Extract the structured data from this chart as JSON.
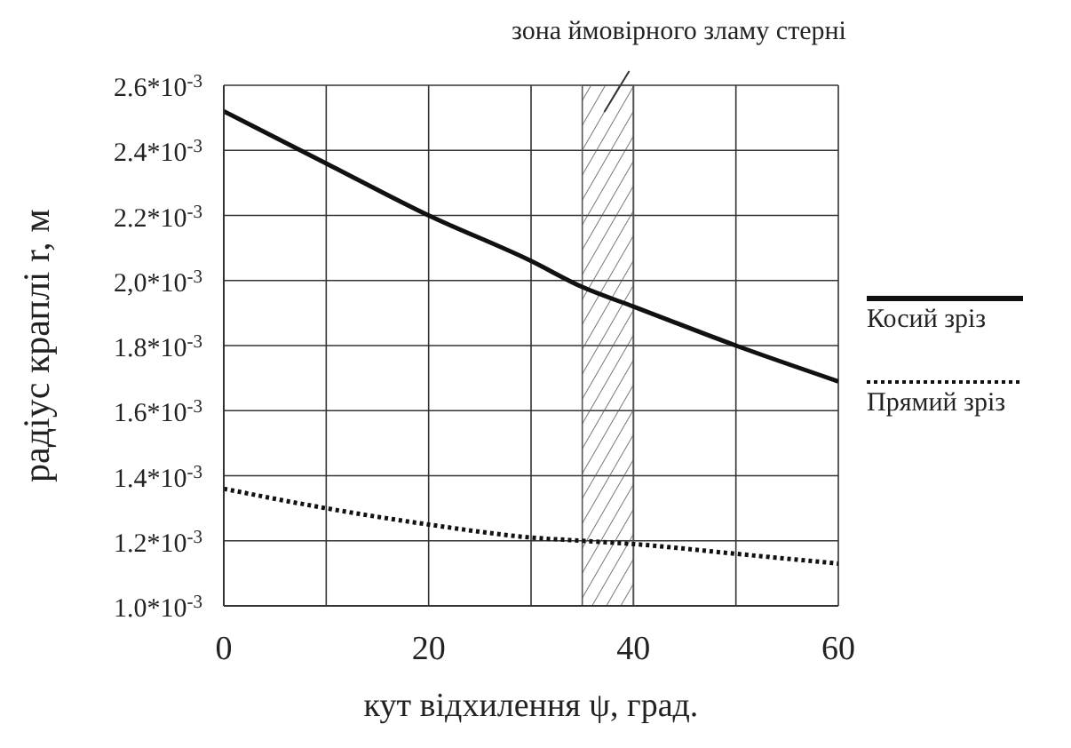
{
  "chart_data": {
    "type": "line",
    "xlabel": "кут відхилення ψ, град.",
    "ylabel": "радіус краплі  r, м",
    "x": [
      0,
      10,
      20,
      30,
      35,
      40,
      50,
      60
    ],
    "series": [
      {
        "name": "Косий зріз",
        "color": "#111111",
        "line_style": "solid",
        "values": [
          0.00252,
          0.00236,
          0.0022,
          0.00206,
          0.00198,
          0.00192,
          0.0018,
          0.00169
        ]
      },
      {
        "name": "Прямий зріз",
        "color": "#111111",
        "line_style": "dotted",
        "values": [
          0.00136,
          0.0013,
          0.00125,
          0.00121,
          0.0012,
          0.00119,
          0.00116,
          0.00113
        ]
      }
    ],
    "xlim": [
      0,
      60
    ],
    "xticks": [
      0,
      {
        "value": 10,
        "label": null
      },
      20,
      {
        "value": 30,
        "label": null
      },
      40,
      {
        "value": 50,
        "label": null
      },
      60
    ],
    "ylim": [
      0.001,
      0.0026
    ],
    "yticks": [
      {
        "value": 0.001,
        "label": "1.0*10$^{-3}$"
      },
      {
        "value": 0.0012,
        "label": "1.2*10$^{-3}$"
      },
      {
        "value": 0.0014,
        "label": "1.4*10$^{-3}$"
      },
      {
        "value": 0.0016,
        "label": "1.6*10$^{-3}$"
      },
      {
        "value": 0.0018,
        "label": "1.8*10$^{-3}$"
      },
      {
        "value": 0.002,
        "label": "2,0*10$^{-3}$"
      },
      {
        "value": 0.0022,
        "label": "2.2*10$^{-3}$"
      },
      {
        "value": 0.0024,
        "label": "2.4*10$^{-3}$"
      },
      {
        "value": 0.0026,
        "label": "2.6*10$^{-3}$"
      }
    ],
    "bands": [
      {
        "axis": "x",
        "from": 35,
        "to": 40,
        "label": "зона ймовірного зламу стерні",
        "color": "#555555"
      }
    ],
    "grid": true,
    "legend": "right",
    "marker": "none"
  }
}
